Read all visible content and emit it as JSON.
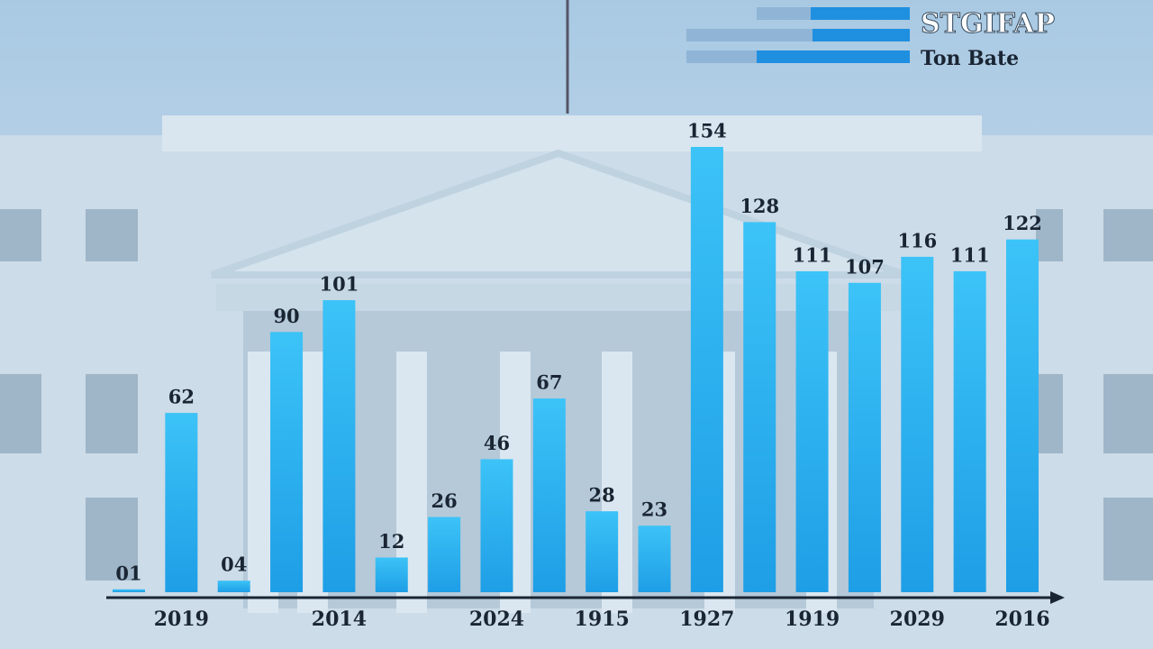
{
  "chart_data": {
    "type": "bar",
    "title": "STGIFAP",
    "subtitle": "Ton Bate",
    "categories": [
      null,
      "2019",
      null,
      null,
      "2014",
      null,
      null,
      "2024",
      null,
      "1915",
      null,
      "1927",
      null,
      "1919",
      null,
      "2029",
      null,
      "2016"
    ],
    "values": [
      1,
      62,
      4,
      90,
      101,
      12,
      26,
      46,
      67,
      28,
      23,
      154,
      128,
      111,
      107,
      116,
      111,
      122
    ],
    "value_labels": [
      "01",
      "62",
      "04",
      "90",
      "101",
      "12",
      "26",
      "46",
      "67",
      "28",
      "23",
      "154",
      "128",
      "111",
      "107",
      "116",
      "111",
      "122"
    ],
    "color": "#22a7ec"
  }
}
